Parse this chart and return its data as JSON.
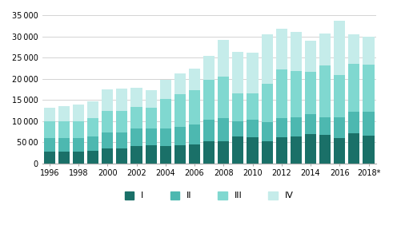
{
  "years": [
    1996,
    1997,
    1998,
    1999,
    2000,
    2001,
    2002,
    2003,
    2004,
    2005,
    2006,
    2007,
    2008,
    2009,
    2010,
    2011,
    2012,
    2013,
    2014,
    2015,
    2016,
    2017,
    2018
  ],
  "Q1": [
    2800,
    2700,
    2800,
    3000,
    3500,
    3600,
    4100,
    4200,
    4100,
    4300,
    4500,
    5200,
    5300,
    6300,
    6200,
    5200,
    6200,
    6300,
    6900,
    6700,
    6000,
    7100,
    6500
  ],
  "Q2": [
    3200,
    3200,
    3200,
    3300,
    3700,
    3700,
    4100,
    4000,
    4100,
    4300,
    4600,
    5100,
    5400,
    3600,
    4100,
    4600,
    4400,
    4600,
    4800,
    4100,
    4900,
    5000,
    5600
  ],
  "Q3": [
    3900,
    4000,
    4000,
    4300,
    5200,
    5000,
    5200,
    5000,
    7000,
    7700,
    8200,
    9500,
    9700,
    6600,
    6300,
    8900,
    11500,
    10900,
    10000,
    12400,
    9900,
    11400,
    11300
  ],
  "Q4": [
    3300,
    3700,
    3900,
    4000,
    5100,
    5400,
    4500,
    4000,
    4600,
    5000,
    5000,
    5500,
    8800,
    9800,
    9600,
    11800,
    9700,
    9200,
    7200,
    7400,
    12800,
    7000,
    6500
  ],
  "colors": [
    "#1a7068",
    "#4db8b0",
    "#80d8d0",
    "#c5ecea"
  ],
  "ylim": [
    0,
    35000
  ],
  "yticks": [
    0,
    5000,
    10000,
    15000,
    20000,
    25000,
    30000,
    35000
  ],
  "year_labels_even": [
    "1996",
    "1998",
    "2000",
    "2002",
    "2004",
    "2006",
    "2008",
    "2010",
    "2012",
    "2014",
    "2016",
    "2018*"
  ],
  "legend_labels": [
    "I",
    "II",
    "III",
    "IV"
  ],
  "background_color": "#ffffff",
  "grid_color": "#cccccc"
}
